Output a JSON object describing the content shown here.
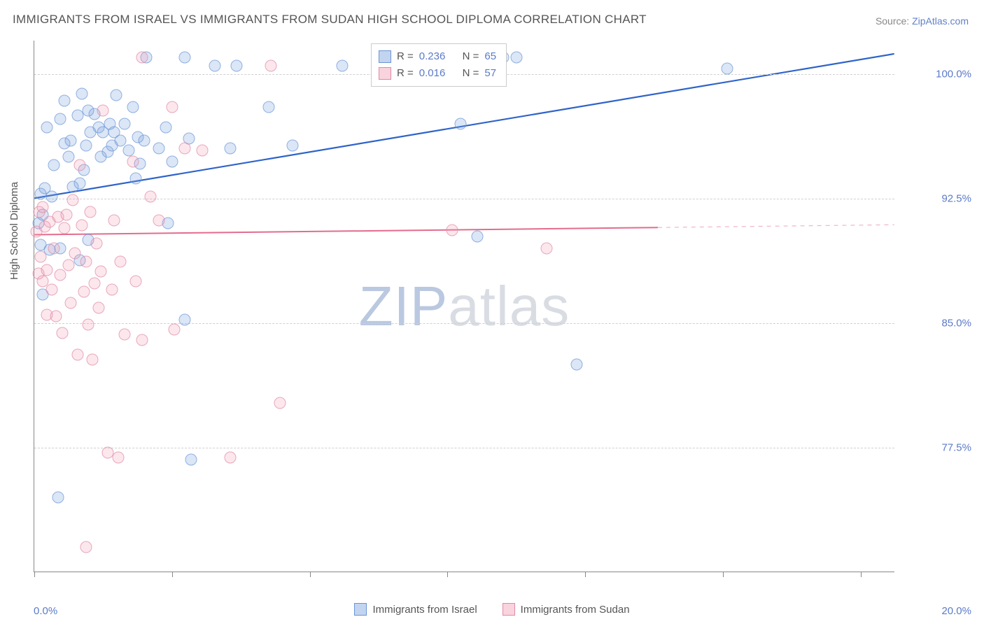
{
  "title": "IMMIGRANTS FROM ISRAEL VS IMMIGRANTS FROM SUDAN HIGH SCHOOL DIPLOMA CORRELATION CHART",
  "source_label": "Source:",
  "source_name": "ZipAtlas.com",
  "watermark_a": "ZIP",
  "watermark_b": "atlas",
  "chart": {
    "type": "scatter",
    "background_color": "#ffffff",
    "grid_color": "#d0d0d0",
    "axis_color": "#888888",
    "ylabel": "High School Diploma",
    "ylabel_fontsize": 15,
    "tick_fontsize": 15,
    "tick_color": "#5b7bc7",
    "xlim": [
      0,
      20
    ],
    "ylim": [
      70,
      102
    ],
    "xticks": [
      0,
      20
    ],
    "xtick_labels": [
      "0.0%",
      "20.0%"
    ],
    "xtick_minor": [
      0,
      3.2,
      6.4,
      9.6,
      12.8,
      16.0,
      19.2
    ],
    "yticks": [
      77.5,
      85.0,
      92.5,
      100.0
    ],
    "ytick_labels": [
      "77.5%",
      "85.0%",
      "92.5%",
      "100.0%"
    ],
    "series": [
      {
        "name": "Immigrants from Israel",
        "marker_color_fill": "rgba(120,160,220,0.35)",
        "marker_color_stroke": "#6a95d6",
        "marker_size": 17,
        "trend_color": "#2e63c9",
        "trend_width": 2.2,
        "trend_from": [
          0,
          92.5
        ],
        "trend_to": [
          20,
          101.2
        ],
        "trend_dash_from_x": null,
        "r": "0.236",
        "n": "65",
        "points": [
          [
            0.1,
            91.0
          ],
          [
            0.15,
            92.8
          ],
          [
            0.15,
            89.7
          ],
          [
            0.2,
            91.5
          ],
          [
            0.2,
            86.7
          ],
          [
            0.25,
            93.1
          ],
          [
            0.3,
            96.8
          ],
          [
            0.35,
            89.4
          ],
          [
            0.4,
            92.6
          ],
          [
            0.45,
            94.5
          ],
          [
            0.6,
            97.3
          ],
          [
            0.7,
            98.4
          ],
          [
            0.7,
            95.8
          ],
          [
            0.8,
            95.0
          ],
          [
            0.85,
            96.0
          ],
          [
            0.9,
            93.2
          ],
          [
            1.0,
            97.5
          ],
          [
            1.05,
            93.4
          ],
          [
            1.1,
            98.8
          ],
          [
            1.15,
            94.2
          ],
          [
            1.2,
            95.7
          ],
          [
            1.25,
            90.0
          ],
          [
            1.25,
            97.8
          ],
          [
            1.3,
            96.5
          ],
          [
            1.4,
            97.6
          ],
          [
            1.5,
            96.8
          ],
          [
            1.55,
            95.0
          ],
          [
            1.6,
            96.5
          ],
          [
            1.7,
            95.3
          ],
          [
            1.75,
            97.0
          ],
          [
            1.8,
            95.7
          ],
          [
            1.85,
            96.5
          ],
          [
            1.9,
            98.7
          ],
          [
            2.0,
            96.0
          ],
          [
            2.1,
            97.0
          ],
          [
            2.2,
            95.4
          ],
          [
            2.3,
            98.0
          ],
          [
            2.35,
            93.7
          ],
          [
            2.4,
            96.2
          ],
          [
            2.45,
            94.6
          ],
          [
            2.55,
            96.0
          ],
          [
            2.6,
            101.0
          ],
          [
            2.9,
            95.5
          ],
          [
            3.05,
            96.8
          ],
          [
            3.1,
            91.0
          ],
          [
            3.2,
            94.7
          ],
          [
            3.5,
            101.0
          ],
          [
            3.5,
            85.2
          ],
          [
            3.6,
            96.1
          ],
          [
            3.65,
            76.8
          ],
          [
            4.2,
            100.5
          ],
          [
            4.55,
            95.5
          ],
          [
            4.7,
            100.5
          ],
          [
            5.45,
            98.0
          ],
          [
            6.0,
            95.7
          ],
          [
            7.15,
            100.5
          ],
          [
            9.9,
            97.0
          ],
          [
            10.3,
            90.2
          ],
          [
            10.9,
            101.0
          ],
          [
            11.2,
            101.0
          ],
          [
            12.6,
            82.5
          ],
          [
            16.1,
            100.3
          ],
          [
            0.6,
            89.5
          ],
          [
            0.55,
            74.5
          ],
          [
            1.05,
            88.8
          ]
        ]
      },
      {
        "name": "Immigrants from Sudan",
        "marker_color_fill": "rgba(240,150,175,0.30)",
        "marker_color_stroke": "#e08aa5",
        "marker_size": 17,
        "trend_color": "#e36c8d",
        "trend_width": 2,
        "trend_from": [
          0,
          90.3
        ],
        "trend_to": [
          20,
          90.9
        ],
        "trend_dash_from_x": 14.5,
        "r": "0.016",
        "n": "57",
        "points": [
          [
            0.05,
            90.5
          ],
          [
            0.1,
            88.0
          ],
          [
            0.12,
            91.7
          ],
          [
            0.15,
            89.0
          ],
          [
            0.2,
            92.0
          ],
          [
            0.2,
            87.5
          ],
          [
            0.25,
            90.8
          ],
          [
            0.3,
            88.2
          ],
          [
            0.3,
            85.5
          ],
          [
            0.35,
            91.1
          ],
          [
            0.4,
            87.0
          ],
          [
            0.45,
            89.5
          ],
          [
            0.5,
            85.4
          ],
          [
            0.55,
            91.4
          ],
          [
            0.6,
            87.9
          ],
          [
            0.65,
            84.4
          ],
          [
            0.7,
            90.7
          ],
          [
            0.75,
            91.5
          ],
          [
            0.8,
            88.5
          ],
          [
            0.85,
            86.2
          ],
          [
            0.9,
            92.4
          ],
          [
            0.95,
            89.2
          ],
          [
            1.0,
            83.1
          ],
          [
            1.05,
            94.5
          ],
          [
            1.1,
            90.9
          ],
          [
            1.15,
            86.9
          ],
          [
            1.2,
            88.7
          ],
          [
            1.25,
            84.9
          ],
          [
            1.3,
            91.7
          ],
          [
            1.35,
            82.8
          ],
          [
            1.4,
            87.4
          ],
          [
            1.45,
            89.8
          ],
          [
            1.5,
            85.9
          ],
          [
            1.55,
            88.1
          ],
          [
            1.6,
            97.8
          ],
          [
            1.7,
            77.2
          ],
          [
            1.8,
            87.0
          ],
          [
            1.85,
            91.2
          ],
          [
            1.95,
            76.9
          ],
          [
            2.0,
            88.7
          ],
          [
            2.1,
            84.3
          ],
          [
            2.3,
            94.7
          ],
          [
            2.35,
            87.5
          ],
          [
            2.5,
            84.0
          ],
          [
            2.5,
            101.0
          ],
          [
            2.7,
            92.6
          ],
          [
            2.9,
            91.2
          ],
          [
            3.2,
            98.0
          ],
          [
            3.25,
            84.6
          ],
          [
            3.5,
            95.5
          ],
          [
            3.9,
            95.4
          ],
          [
            4.55,
            76.9
          ],
          [
            5.5,
            100.5
          ],
          [
            5.7,
            80.2
          ],
          [
            9.7,
            90.6
          ],
          [
            11.9,
            89.5
          ],
          [
            1.2,
            71.5
          ]
        ]
      }
    ],
    "legend_top": {
      "r_label": "R =",
      "n_label": "N ="
    },
    "legend_bottom": {
      "items": [
        "Immigrants from Israel",
        "Immigrants from Sudan"
      ]
    }
  }
}
